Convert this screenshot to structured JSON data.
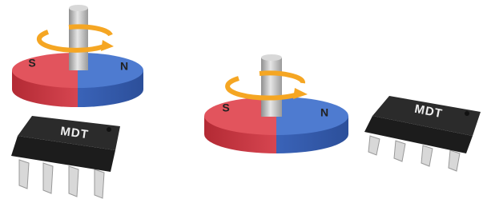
{
  "magnets": [
    {
      "south": "S",
      "north": "N"
    },
    {
      "south": "S",
      "north": "N"
    }
  ],
  "chips": [
    {
      "logo": "MDT"
    },
    {
      "logo": "MDT"
    }
  ]
}
